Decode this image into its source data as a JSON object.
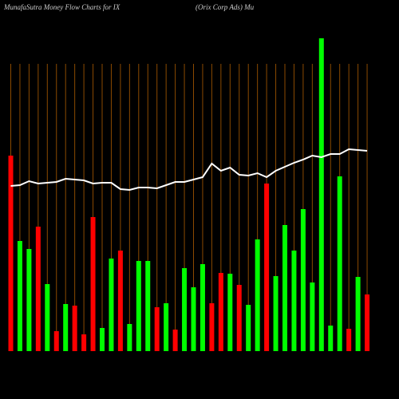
{
  "chart_data": {
    "type": "bar",
    "title": "MunafaSutra  Money Flow  Charts for IX",
    "subtitle": "(Orix Corp Ads) Mu",
    "categories": [
      null,
      null,
      null,
      null,
      null,
      null,
      null,
      null,
      null,
      null,
      null,
      null,
      null,
      null,
      null,
      null,
      null,
      null,
      null,
      null,
      null,
      null,
      null,
      null,
      null,
      null,
      null,
      null,
      null,
      null,
      null,
      null,
      null,
      null,
      null,
      null,
      null,
      null,
      null,
      null
    ],
    "values": [
      245,
      138,
      128,
      156,
      84,
      25,
      59,
      57,
      21,
      168,
      29,
      116,
      126,
      34,
      113,
      113,
      55,
      60,
      27,
      104,
      80,
      109,
      60,
      98,
      97,
      83,
      58,
      140,
      210,
      94,
      158,
      126,
      178,
      86,
      392,
      32,
      219,
      28,
      93,
      71
    ],
    "colors": [
      "#ff0000",
      "#00ff00",
      "#00ff00",
      "#ff0000",
      "#00ff00",
      "#ff0000",
      "#00ff00",
      "#ff0000",
      "#ff0000",
      "#ff0000",
      "#00ff00",
      "#00ff00",
      "#ff0000",
      "#00ff00",
      "#00ff00",
      "#00ff00",
      "#ff0000",
      "#00ff00",
      "#ff0000",
      "#00ff00",
      "#00ff00",
      "#00ff00",
      "#ff0000",
      "#ff0000",
      "#00ff00",
      "#ff0000",
      "#00ff00",
      "#00ff00",
      "#ff0000",
      "#00ff00",
      "#00ff00",
      "#00ff00",
      "#00ff00",
      "#00ff00",
      "#00ff00",
      "#00ff00",
      "#00ff00",
      "#ff0000",
      "#00ff00",
      "#ff0000"
    ],
    "line": {
      "color": "#ffffff",
      "values": [
        207,
        208,
        213,
        210,
        211,
        212,
        216,
        215,
        214,
        210,
        211,
        211,
        203,
        202,
        205,
        205,
        204,
        208,
        212,
        212,
        215,
        218,
        235,
        226,
        230,
        221,
        220,
        223,
        218,
        226,
        231,
        236,
        240,
        245,
        243,
        247,
        247,
        253,
        252,
        251
      ]
    },
    "grid_color": "#8b4a00",
    "ylim": [
      0,
      400
    ]
  }
}
